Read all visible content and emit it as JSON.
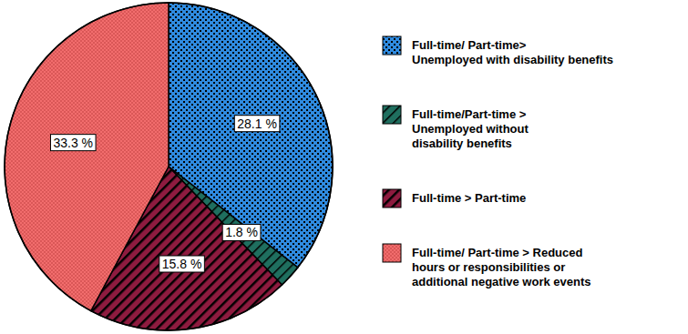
{
  "chart_data": {
    "type": "pie",
    "categories": [
      "Full-time/ Part-time>\nUnemployed with disability benefits",
      "Full-time/Part-time >\nUnemployed without\ndisability benefits",
      "Full-time > Part-time",
      "Full-time/ Part-time > Reduced\nhours or responsibilities or\nadditional negative work events"
    ],
    "values": [
      28.1,
      1.8,
      15.8,
      33.3
    ],
    "value_labels": [
      "28.1 %",
      "1.8 %",
      "15.8 %",
      "33.3 %"
    ],
    "colors": [
      "#2f8be0",
      "#1f6f5f",
      "#8e1b3f",
      "#f26d6d"
    ],
    "data_labels": true,
    "legend": "right"
  }
}
